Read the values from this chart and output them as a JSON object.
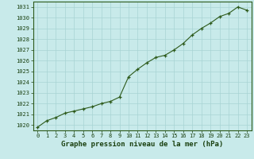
{
  "x": [
    0,
    1,
    2,
    3,
    4,
    5,
    6,
    7,
    8,
    9,
    10,
    11,
    12,
    13,
    14,
    15,
    16,
    17,
    18,
    19,
    20,
    21,
    22,
    23
  ],
  "y": [
    1019.8,
    1020.4,
    1020.7,
    1021.1,
    1021.3,
    1021.5,
    1021.7,
    1022.0,
    1022.2,
    1022.6,
    1024.5,
    1025.2,
    1025.8,
    1026.3,
    1026.5,
    1027.0,
    1027.6,
    1028.4,
    1029.0,
    1029.5,
    1030.1,
    1030.4,
    1031.0,
    1030.7
  ],
  "ylim": [
    1019.5,
    1031.5
  ],
  "yticks": [
    1020,
    1021,
    1022,
    1023,
    1024,
    1025,
    1026,
    1027,
    1028,
    1029,
    1030,
    1031
  ],
  "xticks": [
    0,
    1,
    2,
    3,
    4,
    5,
    6,
    7,
    8,
    9,
    10,
    11,
    12,
    13,
    14,
    15,
    16,
    17,
    18,
    19,
    20,
    21,
    22,
    23
  ],
  "xlabel": "Graphe pression niveau de la mer (hPa)",
  "line_color": "#2d5a1b",
  "marker_color": "#2d5a1b",
  "bg_color": "#c8eaea",
  "grid_color": "#a8d4d4",
  "text_color": "#1a4010",
  "tick_label_fontsize": 5.0,
  "xlabel_fontsize": 6.5
}
